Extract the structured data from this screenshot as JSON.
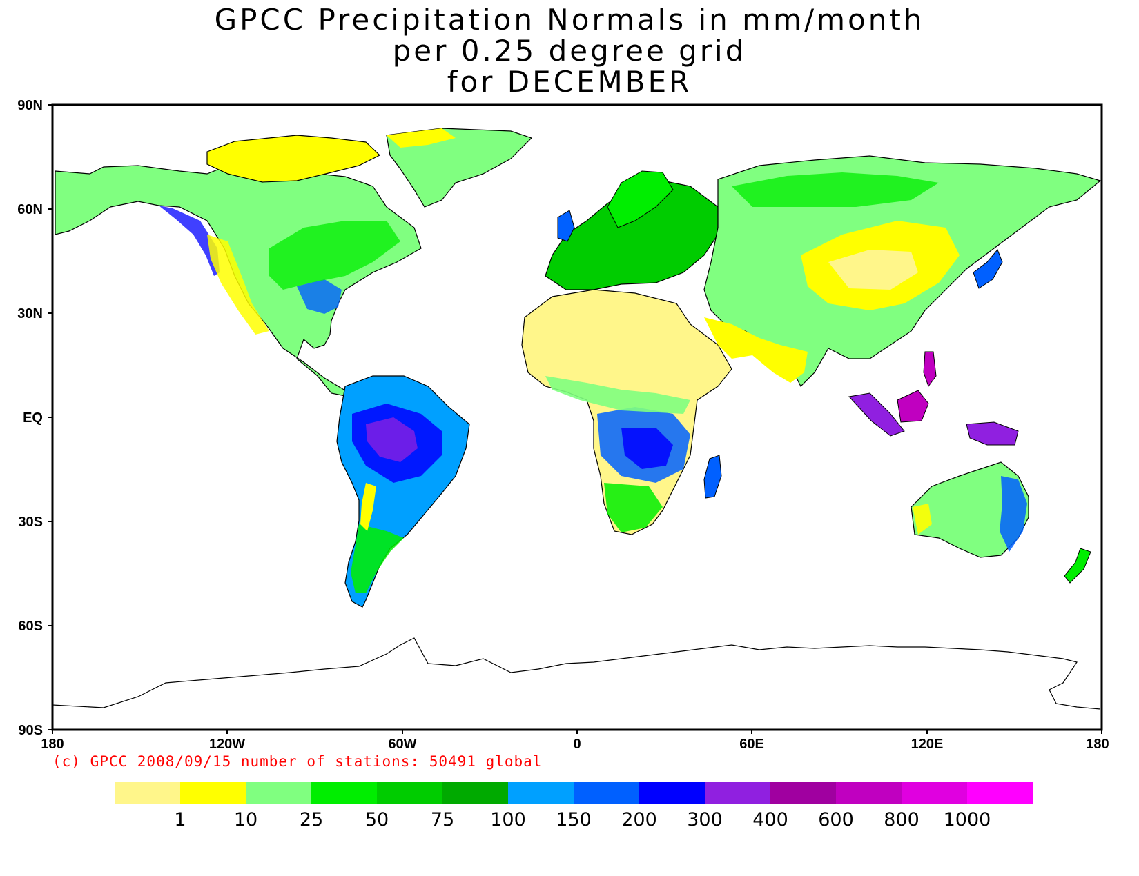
{
  "title": {
    "line1": "GPCC Precipitation Normals in mm/month",
    "line2": "per 0.25 degree grid",
    "line3": "for DECEMBER"
  },
  "map": {
    "lat_labels": [
      "90N",
      "60N",
      "30N",
      "EQ",
      "30S",
      "60S",
      "90S"
    ],
    "lon_labels": [
      "180",
      "120W",
      "60W",
      "0",
      "60E",
      "120E",
      "180"
    ],
    "lon_range": [
      -180,
      180
    ],
    "lat_range": [
      -90,
      90
    ],
    "ocean_color": "#ffffff",
    "coastline_color": "#000000"
  },
  "credit": "(c) GPCC 2008/09/15 number of stations: 50491 global",
  "legend": {
    "colors": [
      "#fff68a",
      "#ffff00",
      "#80ff80",
      "#00ee00",
      "#00cc00",
      "#00aa00",
      "#00a0ff",
      "#0060ff",
      "#0000ff",
      "#9020e0",
      "#a000a0",
      "#c000c0",
      "#e000e0",
      "#ff00ff"
    ],
    "thresholds": [
      "1",
      "10",
      "25",
      "50",
      "75",
      "100",
      "150",
      "200",
      "300",
      "400",
      "600",
      "800",
      "1000"
    ]
  }
}
